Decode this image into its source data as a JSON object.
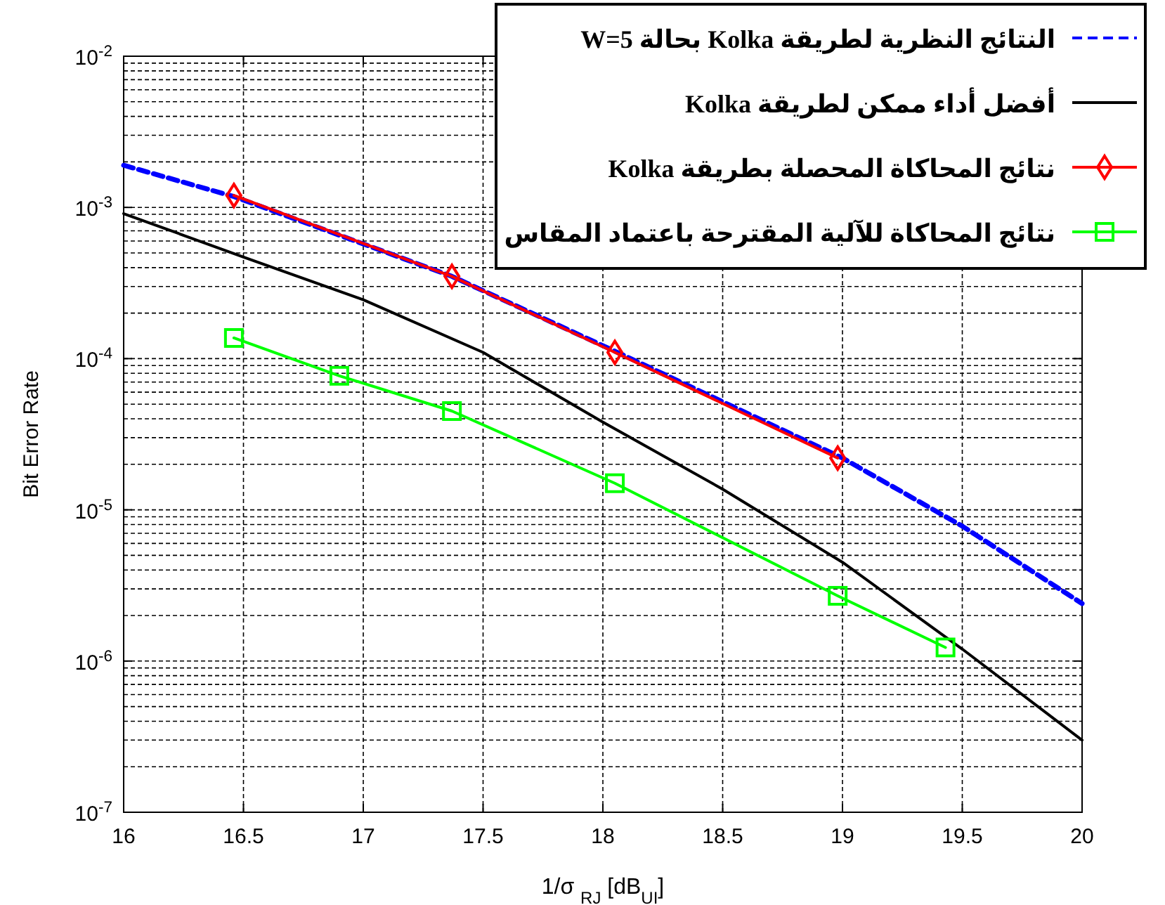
{
  "chart_data": {
    "type": "line",
    "xlabel": "1/σ $_{RJ}$ [dB$_{UI}$]",
    "ylabel": "Bit Error Rate",
    "log": "y",
    "grid": true,
    "legend": "top right",
    "xlim": [
      16,
      20
    ],
    "xticks": [
      16,
      16.5,
      17,
      17.5,
      18,
      18.5,
      19,
      19.5,
      20
    ],
    "ylim": [
      1e-07,
      0.01
    ],
    "yticks": [
      {
        "value": 1e-07,
        "label": "10$^{-7}$"
      },
      {
        "value": 1e-06,
        "label": "10$^{-6}$"
      },
      {
        "value": 1e-05,
        "label": "10$^{-5}$"
      },
      {
        "value": 0.0001,
        "label": "10$^{-4}$"
      },
      {
        "value": 0.001,
        "label": "10$^{-3}$"
      },
      {
        "value": 0.01,
        "label": "10$^{-2}$"
      }
    ],
    "series": [
      {
        "name": "النتائج النظرية لطريقة Kolka بحالة W=5",
        "color": "#0000ff",
        "line_style": "dashed",
        "marker": "none",
        "x": [
          16,
          16.46,
          17.37,
          18.05,
          19,
          19.5,
          20
        ],
        "values": [
          0.0019,
          0.00118,
          0.00035,
          0.000112,
          2.2e-05,
          7.8e-06,
          2.4e-06
        ]
      },
      {
        "name": "أفضل أداء ممكن لطريقة Kolka",
        "color": "#000000",
        "line_style": "solid",
        "marker": "none",
        "x": [
          16,
          16.5,
          17,
          17.5,
          18,
          18.5,
          19,
          19.5,
          20
        ],
        "values": [
          0.00091,
          0.00047,
          0.000245,
          0.00011,
          3.8e-05,
          1.37e-05,
          4.5e-06,
          1.2e-06,
          3e-07
        ]
      },
      {
        "name": "نتائج المحاكاة المحصلة بطريقة Kolka",
        "color": "#ff0000",
        "line_style": "solid",
        "marker": "diamond",
        "x": [
          16.46,
          17.37,
          18.05,
          18.98
        ],
        "values": [
          0.0012,
          0.00035,
          0.00011,
          2.2e-05
        ]
      },
      {
        "name": "نتائج المحاكاة للآلية المقترحة باعتماد المقاس",
        "color": "#00ff00",
        "line_style": "solid",
        "marker": "square",
        "x": [
          16.46,
          16.9,
          17.37,
          18.05,
          18.98,
          19.43
        ],
        "values": [
          0.000137,
          7.7e-05,
          4.5e-05,
          1.5e-05,
          2.7e-06,
          1.23e-06
        ]
      }
    ]
  }
}
